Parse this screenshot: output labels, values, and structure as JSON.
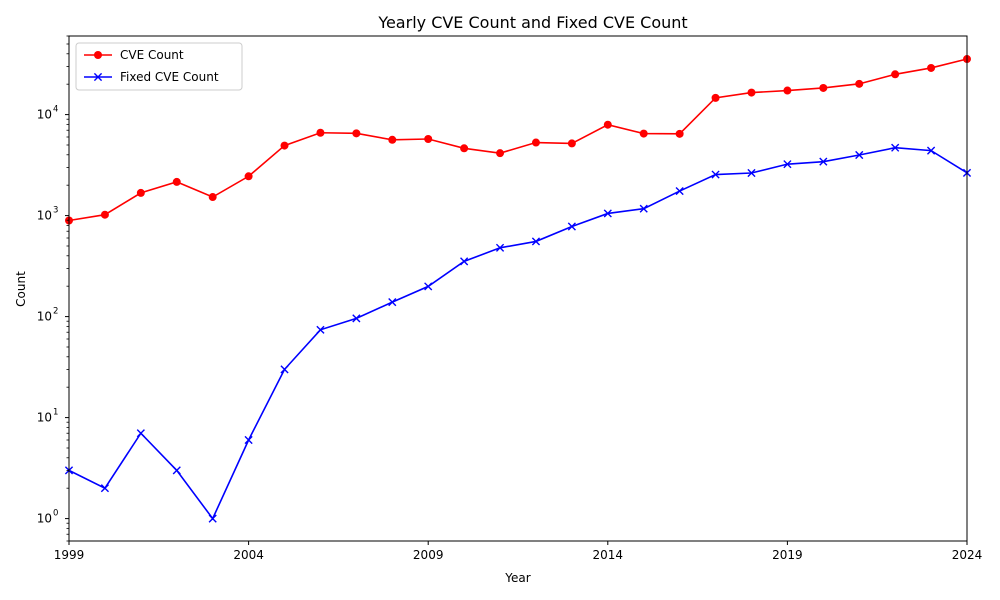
{
  "chart_data": {
    "type": "line",
    "title": "Yearly CVE Count and Fixed CVE Count",
    "xlabel": "Year",
    "ylabel": "Count",
    "yscale": "log",
    "xlim": [
      1999,
      2024
    ],
    "ylim": [
      0.6,
      60000
    ],
    "xticks": [
      1999,
      2004,
      2009,
      2014,
      2019,
      2024
    ],
    "yticks": [
      {
        "value": 1,
        "label": "10",
        "exp": "0"
      },
      {
        "value": 10,
        "label": "10",
        "exp": "1"
      },
      {
        "value": 100,
        "label": "10",
        "exp": "2"
      },
      {
        "value": 1000,
        "label": "10",
        "exp": "3"
      },
      {
        "value": 10000,
        "label": "10",
        "exp": "4"
      }
    ],
    "legend_position": "top-left",
    "x": [
      1999,
      2000,
      2001,
      2002,
      2003,
      2004,
      2005,
      2006,
      2007,
      2008,
      2009,
      2010,
      2011,
      2012,
      2013,
      2014,
      2015,
      2016,
      2017,
      2018,
      2019,
      2020,
      2021,
      2022,
      2023,
      2024
    ],
    "series": [
      {
        "name": "CVE Count",
        "color": "#ff0000",
        "marker": "circle",
        "values": [
          894,
          1020,
          1677,
          2156,
          1527,
          2451,
          4935,
          6610,
          6520,
          5632,
          5732,
          4639,
          4150,
          5288,
          5186,
          7937,
          6487,
          6447,
          14643,
          16509,
          17305,
          18350,
          20155,
          25059,
          28961,
          35500
        ]
      },
      {
        "name": "Fixed CVE Count",
        "color": "#0000ff",
        "marker": "x",
        "values": [
          3,
          2,
          7,
          3,
          1,
          6,
          30,
          74,
          96,
          139,
          199,
          352,
          480,
          555,
          780,
          1050,
          1170,
          1750,
          2550,
          2640,
          3230,
          3420,
          3980,
          4700,
          4400,
          2650
        ]
      }
    ]
  }
}
